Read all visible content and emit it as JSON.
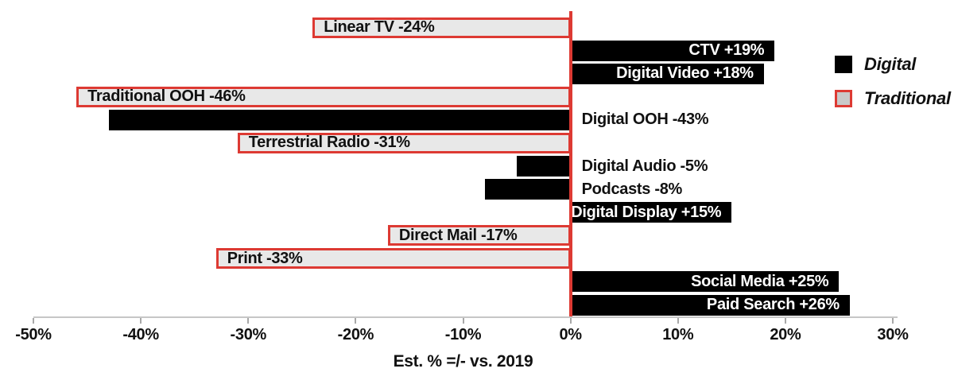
{
  "chart_data": {
    "type": "bar",
    "orientation": "horizontal",
    "title": "",
    "xlabel": "Est. % =/- vs. 2019",
    "ylabel": "",
    "xlim": [
      -50,
      30
    ],
    "grid": false,
    "x_ticks": [
      "-50%",
      "-40%",
      "-30%",
      "-20%",
      "-10%",
      "0%",
      "10%",
      "20%",
      "30%"
    ],
    "x_tick_values": [
      -50,
      -40,
      -30,
      -20,
      -10,
      0,
      10,
      20,
      30
    ],
    "bars": [
      {
        "category": "Linear TV",
        "value": -24,
        "series": "Traditional",
        "label": "Linear TV -24%"
      },
      {
        "category": "CTV",
        "value": 19,
        "series": "Digital",
        "label": "CTV +19%"
      },
      {
        "category": "Digital Video",
        "value": 18,
        "series": "Digital",
        "label": "Digital Video +18%"
      },
      {
        "category": "Traditional OOH",
        "value": -46,
        "series": "Traditional",
        "label": "Traditional OOH -46%"
      },
      {
        "category": "Digital OOH",
        "value": -43,
        "series": "Digital",
        "label": "Digital OOH -43%"
      },
      {
        "category": "Terrestrial Radio",
        "value": -31,
        "series": "Traditional",
        "label": "Terrestrial Radio -31%"
      },
      {
        "category": "Digital Audio",
        "value": -5,
        "series": "Digital",
        "label": "Digital Audio -5%"
      },
      {
        "category": "Podcasts",
        "value": -8,
        "series": "Digital",
        "label": "Podcasts -8%"
      },
      {
        "category": "Digital Display",
        "value": 15,
        "series": "Digital",
        "label": "Digital Display +15%"
      },
      {
        "category": "Direct Mail",
        "value": -17,
        "series": "Traditional",
        "label": "Direct Mail -17%"
      },
      {
        "category": "Print",
        "value": -33,
        "series": "Traditional",
        "label": "Print -33%"
      },
      {
        "category": "Social Media",
        "value": 25,
        "series": "Digital",
        "label": "Social Media +25%"
      },
      {
        "category": "Paid Search",
        "value": 26,
        "series": "Digital",
        "label": "Paid Search +26%"
      }
    ],
    "legend": {
      "position": "top-right",
      "items": [
        {
          "label": "Digital",
          "color": "#000000"
        },
        {
          "label": "Traditional",
          "color": "#c9c9c9",
          "border": "#dd3a33"
        }
      ]
    },
    "colors": {
      "digital_fill": "#000000",
      "traditional_fill": "#e8e8e8",
      "traditional_border": "#dd3a33",
      "zero_line": "#dd3a33",
      "axis_line": "#c6c6c6",
      "positive_label_text": "#ffffff",
      "label_text": "#111111"
    }
  }
}
